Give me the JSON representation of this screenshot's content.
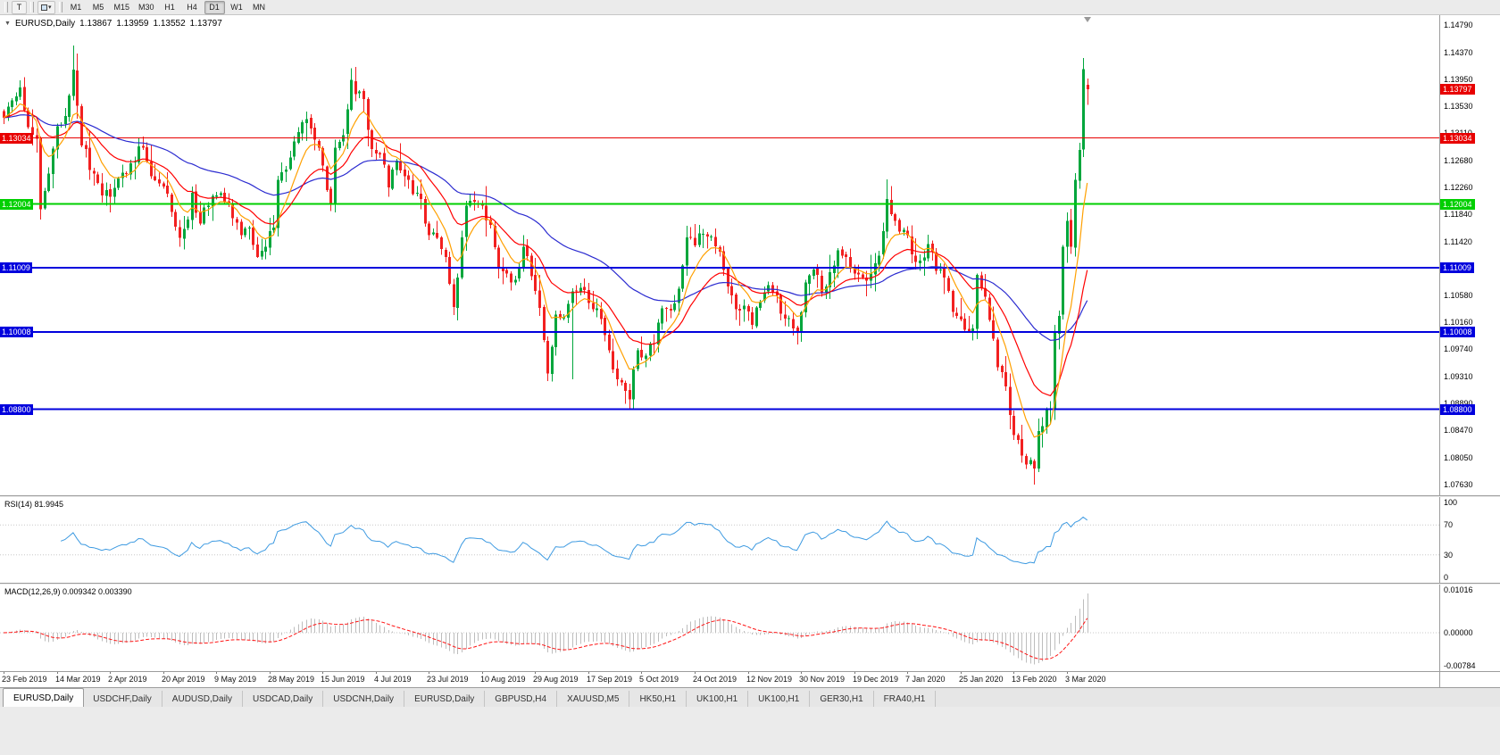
{
  "toolbar": {
    "text_tool_label": "T",
    "dropdown_caret": "▾",
    "timeframes": [
      "M1",
      "M5",
      "M15",
      "M30",
      "H1",
      "H4",
      "D1",
      "W1",
      "MN"
    ],
    "active_timeframe": "D1"
  },
  "chart_header": {
    "collapse_icon": "▼",
    "symbol_period": "EURUSD,Daily",
    "open": "1.13867",
    "high": "1.13959",
    "low": "1.13552",
    "close": "1.13797"
  },
  "chart_data": {
    "type": "candlestick",
    "symbol": "EURUSD",
    "period": "Daily",
    "candle_count": 266,
    "y_scale": {
      "top": 1.1495,
      "bottom": 1.0746
    },
    "y_axis_ticks": [
      "1.14790",
      "1.14370",
      "1.13950",
      "1.13530",
      "1.13110",
      "1.12680",
      "1.12260",
      "1.11840",
      "1.11420",
      "1.11000",
      "1.10580",
      "1.10160",
      "1.09740",
      "1.09310",
      "1.08890",
      "1.08470",
      "1.08050",
      "1.07630"
    ],
    "x_labels": [
      "23 Feb 2019",
      "14 Mar 2019",
      "2 Apr 2019",
      "20 Apr 2019",
      "9 May 2019",
      "28 May 2019",
      "15 Jun 2019",
      "4 Jul 2019",
      "23 Jul 2019",
      "10 Aug 2019",
      "29 Aug 2019",
      "17 Sep 2019",
      "5 Oct 2019",
      "24 Oct 2019",
      "12 Nov 2019",
      "30 Nov 2019",
      "19 Dec 2019",
      "7 Jan 2020",
      "25 Jan 2020",
      "13 Feb 2020",
      "3 Mar 2020"
    ],
    "x_label_step": 13,
    "colors": {
      "bull": "#00a63c",
      "bear": "#f22020"
    },
    "current_price": {
      "label": "1.13797",
      "color": "#e80000"
    },
    "horizontal_lines": [
      {
        "price": 1.13034,
        "label": "1.13034",
        "color": "#e80000",
        "width": 1
      },
      {
        "price": 1.12004,
        "label": "1.12004",
        "color": "#00cf00",
        "width": 2
      },
      {
        "price": 1.11009,
        "label": "1.11009",
        "color": "#0000dd",
        "width": 2
      },
      {
        "price": 1.10008,
        "label": "1.10008",
        "color": "#0000dd",
        "width": 2
      },
      {
        "price": 1.088,
        "label": "1.08800",
        "color": "#0000dd",
        "width": 2
      }
    ],
    "moving_averages": [
      {
        "period": 55,
        "color": "#2b2bd0"
      },
      {
        "period": 20,
        "color": "#ff0000"
      },
      {
        "period": 8,
        "color": "#ffa000"
      }
    ],
    "last_candle": {
      "open": 1.13867,
      "high": 1.13959,
      "low": 1.13552,
      "close": 1.13797
    },
    "close_anchors": [
      [
        0,
        1.1335
      ],
      [
        2,
        1.1362
      ],
      [
        4,
        1.1382
      ],
      [
        6,
        1.132
      ],
      [
        8,
        1.1302
      ],
      [
        9,
        1.1192
      ],
      [
        11,
        1.1248
      ],
      [
        13,
        1.1322
      ],
      [
        15,
        1.1338
      ],
      [
        17,
        1.141
      ],
      [
        19,
        1.1292
      ],
      [
        22,
        1.1248
      ],
      [
        24,
        1.1214
      ],
      [
        26,
        1.1212
      ],
      [
        28,
        1.124
      ],
      [
        31,
        1.1264
      ],
      [
        34,
        1.1288
      ],
      [
        36,
        1.1244
      ],
      [
        39,
        1.1228
      ],
      [
        41,
        1.1188
      ],
      [
        43,
        1.1148
      ],
      [
        45,
        1.1176
      ],
      [
        46,
        1.1218
      ],
      [
        48,
        1.117
      ],
      [
        50,
        1.1198
      ],
      [
        52,
        1.1214
      ],
      [
        54,
        1.1204
      ],
      [
        56,
        1.1178
      ],
      [
        58,
        1.1152
      ],
      [
        60,
        1.1164
      ],
      [
        62,
        1.1118
      ],
      [
        64,
        1.1134
      ],
      [
        66,
        1.1164
      ],
      [
        67,
        1.1238
      ],
      [
        69,
        1.1254
      ],
      [
        71,
        1.1298
      ],
      [
        73,
        1.1328
      ],
      [
        75,
        1.1318
      ],
      [
        77,
        1.1288
      ],
      [
        79,
        1.1222
      ],
      [
        80,
        1.12
      ],
      [
        81,
        1.1288
      ],
      [
        83,
        1.1308
      ],
      [
        85,
        1.1394
      ],
      [
        86,
        1.1372
      ],
      [
        88,
        1.1364
      ],
      [
        90,
        1.1286
      ],
      [
        92,
        1.1278
      ],
      [
        94,
        1.1226
      ],
      [
        96,
        1.1268
      ],
      [
        98,
        1.1244
      ],
      [
        100,
        1.1216
      ],
      [
        102,
        1.1208
      ],
      [
        104,
        1.1152
      ],
      [
        106,
        1.1148
      ],
      [
        108,
        1.1118
      ],
      [
        109,
        1.1076
      ],
      [
        110,
        1.104
      ],
      [
        111,
        1.1086
      ],
      [
        112,
        1.1148
      ],
      [
        113,
        1.1198
      ],
      [
        115,
        1.1204
      ],
      [
        117,
        1.1198
      ],
      [
        119,
        1.1168
      ],
      [
        121,
        1.1102
      ],
      [
        123,
        1.1092
      ],
      [
        125,
        1.1082
      ],
      [
        127,
        1.1134
      ],
      [
        129,
        1.1088
      ],
      [
        131,
        1.1038
      ],
      [
        132,
        1.0988
      ],
      [
        133,
        1.0936
      ],
      [
        135,
        1.1028
      ],
      [
        137,
        1.1024
      ],
      [
        139,
        1.1064
      ],
      [
        141,
        1.107
      ],
      [
        143,
        1.1046
      ],
      [
        145,
        1.1038
      ],
      [
        147,
        1.0996
      ],
      [
        149,
        1.0942
      ],
      [
        151,
        1.0922
      ],
      [
        153,
        1.0896
      ],
      [
        155,
        1.0972
      ],
      [
        157,
        1.0964
      ],
      [
        159,
        1.0982
      ],
      [
        161,
        1.1038
      ],
      [
        163,
        1.1034
      ],
      [
        165,
        1.1068
      ],
      [
        167,
        1.1148
      ],
      [
        169,
        1.1136
      ],
      [
        171,
        1.1154
      ],
      [
        173,
        1.115
      ],
      [
        175,
        1.1126
      ],
      [
        177,
        1.1072
      ],
      [
        179,
        1.1036
      ],
      [
        181,
        1.1042
      ],
      [
        183,
        1.1012
      ],
      [
        185,
        1.1048
      ],
      [
        187,
        1.1074
      ],
      [
        189,
        1.1058
      ],
      [
        191,
        1.1022
      ],
      [
        193,
        1.1006
      ],
      [
        194,
        1.1
      ],
      [
        196,
        1.1078
      ],
      [
        198,
        1.1098
      ],
      [
        200,
        1.1062
      ],
      [
        202,
        1.1094
      ],
      [
        204,
        1.1128
      ],
      [
        206,
        1.1118
      ],
      [
        208,
        1.1092
      ],
      [
        210,
        1.1086
      ],
      [
        212,
        1.1092
      ],
      [
        214,
        1.112
      ],
      [
        216,
        1.1208
      ],
      [
        218,
        1.1174
      ],
      [
        220,
        1.116
      ],
      [
        222,
        1.1122
      ],
      [
        224,
        1.1112
      ],
      [
        226,
        1.1138
      ],
      [
        228,
        1.1096
      ],
      [
        230,
        1.1086
      ],
      [
        232,
        1.1032
      ],
      [
        234,
        1.102
      ],
      [
        236,
        1.1002
      ],
      [
        237,
        1.1006
      ],
      [
        238,
        1.109
      ],
      [
        240,
        1.1056
      ],
      [
        242,
        1.099
      ],
      [
        243,
        1.0946
      ],
      [
        245,
        1.0916
      ],
      [
        247,
        1.084
      ],
      [
        248,
        1.0832
      ],
      [
        250,
        1.0794
      ],
      [
        252,
        1.0788
      ],
      [
        253,
        1.0846
      ],
      [
        254,
        1.0854
      ],
      [
        255,
        1.088
      ],
      [
        256,
        1.088
      ],
      [
        257,
        1.1
      ],
      [
        258,
        1.1026
      ],
      [
        259,
        1.1134
      ],
      [
        260,
        1.1174
      ],
      [
        261,
        1.1134
      ],
      [
        262,
        1.1238
      ],
      [
        263,
        1.1285
      ],
      [
        264,
        1.1411
      ],
      [
        265,
        1.13797
      ]
    ],
    "wick_overrides": [
      [
        9,
        "l",
        1.1176
      ],
      [
        17,
        "h",
        1.1448
      ],
      [
        85,
        "h",
        1.1412
      ],
      [
        110,
        "l",
        1.1027
      ],
      [
        133,
        "l",
        1.0926
      ],
      [
        139,
        "l",
        1.0927
      ],
      [
        153,
        "l",
        1.0879
      ],
      [
        194,
        "l",
        1.0981
      ],
      [
        216,
        "h",
        1.1239
      ],
      [
        252,
        "l",
        1.0778
      ],
      [
        264,
        "h",
        1.1421
      ]
    ],
    "rsi": {
      "label": "RSI(14) 81.9945",
      "period": 14,
      "color": "#3d9ae1",
      "level_color": "#c8c8c8",
      "levels": [
        70,
        30
      ],
      "ticks": [
        "100",
        "70",
        "30",
        "0"
      ]
    },
    "macd": {
      "label": "MACD(12,26,9) 0.009342 0.003390",
      "fast": 12,
      "slow": 26,
      "signal_period": 9,
      "max": 0.01016,
      "min": -0.00784,
      "histogram_color": "#bdbdbd",
      "signal_color": "#ff1414",
      "ticks": [
        "0.01016",
        "0.00000",
        "-0.00784"
      ]
    }
  },
  "tabs": {
    "items": [
      "EURUSD,Daily",
      "USDCHF,Daily",
      "AUDUSD,Daily",
      "USDCAD,Daily",
      "USDCNH,Daily",
      "EURUSD,Daily",
      "GBPUSD,H4",
      "XAUUSD,M5",
      "HK50,H1",
      "UK100,H1",
      "UK100,H1",
      "GER30,H1",
      "FRA40,H1"
    ],
    "active_index": 0
  }
}
